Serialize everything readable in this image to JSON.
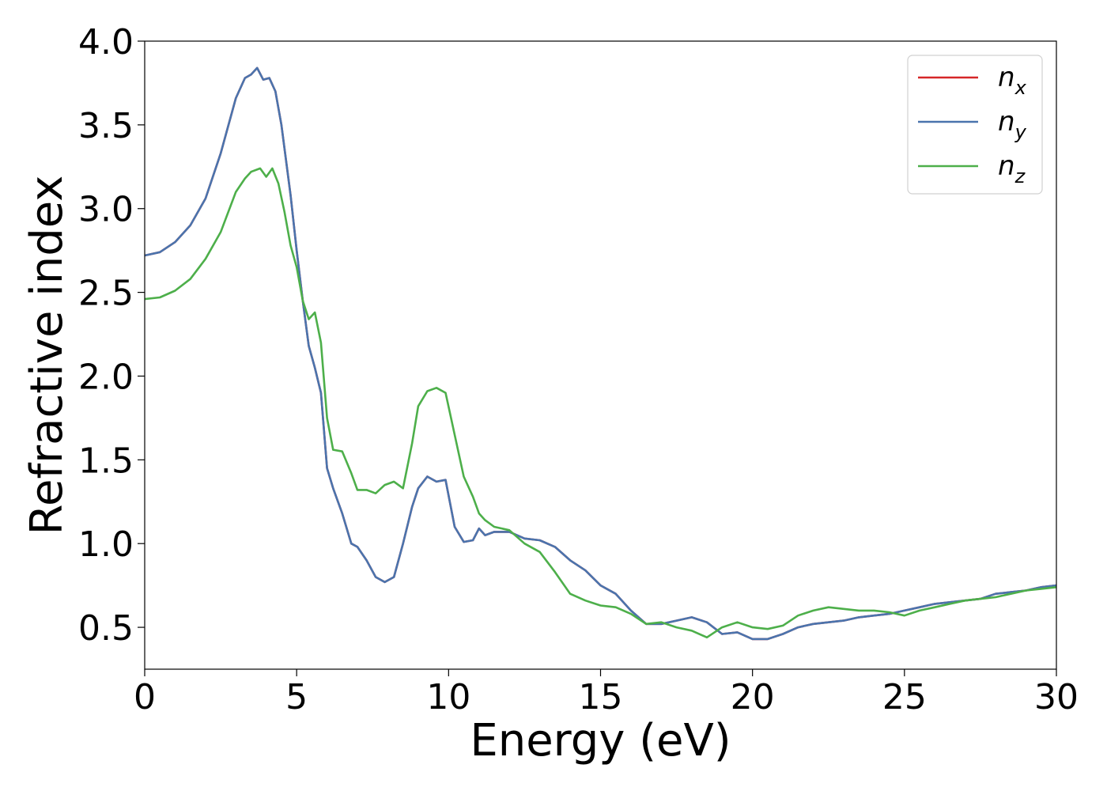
{
  "chart_data": {
    "type": "line",
    "title": "",
    "xlabel": "Energy (eV)",
    "ylabel": "Refractive index",
    "xlim": [
      0,
      30
    ],
    "ylim": [
      0.25,
      4.0
    ],
    "xticks": [
      0,
      5,
      10,
      15,
      20,
      25,
      30
    ],
    "xtick_labels": [
      "0",
      "5",
      "10",
      "15",
      "20",
      "25",
      "30"
    ],
    "yticks": [
      0.5,
      1.0,
      1.5,
      2.0,
      2.5,
      3.0,
      3.5,
      4.0
    ],
    "ytick_labels": [
      "0.5",
      "1.0",
      "1.5",
      "2.0",
      "2.5",
      "3.0",
      "3.5",
      "4.0"
    ],
    "grid": false,
    "legend_position": "top-right",
    "series": [
      {
        "name": "n_x",
        "label_base": "n",
        "label_sub": "x",
        "color": "#d62728",
        "x": [
          0,
          0.5,
          1,
          1.5,
          2,
          2.5,
          3,
          3.3,
          3.5,
          3.7,
          3.9,
          4.1,
          4.3,
          4.5,
          4.8,
          5.0,
          5.2,
          5.4,
          5.6,
          5.8,
          6.0,
          6.2,
          6.5,
          6.8,
          7.0,
          7.3,
          7.6,
          7.9,
          8.2,
          8.5,
          8.8,
          9.0,
          9.3,
          9.6,
          9.9,
          10.2,
          10.5,
          10.8,
          11.0,
          11.2,
          11.5,
          12.0,
          12.5,
          13.0,
          13.5,
          14.0,
          14.5,
          15.0,
          15.5,
          16.0,
          16.5,
          17.0,
          17.5,
          18.0,
          18.5,
          19.0,
          19.5,
          20.0,
          20.5,
          21.0,
          21.5,
          22.0,
          22.5,
          23.0,
          23.5,
          24.0,
          24.5,
          25.0,
          25.5,
          26.0,
          26.5,
          27.0,
          27.5,
          28.0,
          28.5,
          29.0,
          29.5,
          30.0
        ],
        "y": [
          2.72,
          2.74,
          2.8,
          2.9,
          3.06,
          3.33,
          3.66,
          3.78,
          3.8,
          3.84,
          3.77,
          3.78,
          3.7,
          3.5,
          3.08,
          2.75,
          2.45,
          2.18,
          2.05,
          1.9,
          1.45,
          1.33,
          1.18,
          1.0,
          0.98,
          0.9,
          0.8,
          0.77,
          0.8,
          1.0,
          1.22,
          1.33,
          1.4,
          1.37,
          1.38,
          1.1,
          1.01,
          1.02,
          1.09,
          1.05,
          1.07,
          1.07,
          1.03,
          1.02,
          0.98,
          0.9,
          0.84,
          0.75,
          0.7,
          0.6,
          0.52,
          0.52,
          0.54,
          0.56,
          0.53,
          0.46,
          0.47,
          0.43,
          0.43,
          0.46,
          0.5,
          0.52,
          0.53,
          0.54,
          0.56,
          0.57,
          0.58,
          0.6,
          0.62,
          0.64,
          0.65,
          0.66,
          0.67,
          0.7,
          0.71,
          0.72,
          0.74,
          0.75
        ]
      },
      {
        "name": "n_y",
        "label_base": "n",
        "label_sub": "y",
        "color": "#4a74ad",
        "x": [
          0,
          0.5,
          1,
          1.5,
          2,
          2.5,
          3,
          3.3,
          3.5,
          3.7,
          3.9,
          4.1,
          4.3,
          4.5,
          4.8,
          5.0,
          5.2,
          5.4,
          5.6,
          5.8,
          6.0,
          6.2,
          6.5,
          6.8,
          7.0,
          7.3,
          7.6,
          7.9,
          8.2,
          8.5,
          8.8,
          9.0,
          9.3,
          9.6,
          9.9,
          10.2,
          10.5,
          10.8,
          11.0,
          11.2,
          11.5,
          12.0,
          12.5,
          13.0,
          13.5,
          14.0,
          14.5,
          15.0,
          15.5,
          16.0,
          16.5,
          17.0,
          17.5,
          18.0,
          18.5,
          19.0,
          19.5,
          20.0,
          20.5,
          21.0,
          21.5,
          22.0,
          22.5,
          23.0,
          23.5,
          24.0,
          24.5,
          25.0,
          25.5,
          26.0,
          26.5,
          27.0,
          27.5,
          28.0,
          28.5,
          29.0,
          29.5,
          30.0
        ],
        "y": [
          2.72,
          2.74,
          2.8,
          2.9,
          3.06,
          3.33,
          3.66,
          3.78,
          3.8,
          3.84,
          3.77,
          3.78,
          3.7,
          3.5,
          3.08,
          2.75,
          2.45,
          2.18,
          2.05,
          1.9,
          1.45,
          1.33,
          1.18,
          1.0,
          0.98,
          0.9,
          0.8,
          0.77,
          0.8,
          1.0,
          1.22,
          1.33,
          1.4,
          1.37,
          1.38,
          1.1,
          1.01,
          1.02,
          1.09,
          1.05,
          1.07,
          1.07,
          1.03,
          1.02,
          0.98,
          0.9,
          0.84,
          0.75,
          0.7,
          0.6,
          0.52,
          0.52,
          0.54,
          0.56,
          0.53,
          0.46,
          0.47,
          0.43,
          0.43,
          0.46,
          0.5,
          0.52,
          0.53,
          0.54,
          0.56,
          0.57,
          0.58,
          0.6,
          0.62,
          0.64,
          0.65,
          0.66,
          0.67,
          0.7,
          0.71,
          0.72,
          0.74,
          0.75
        ]
      },
      {
        "name": "n_z",
        "label_base": "n",
        "label_sub": "z",
        "color": "#4daf4a",
        "x": [
          0,
          0.5,
          1,
          1.5,
          2,
          2.5,
          3,
          3.3,
          3.5,
          3.8,
          4.0,
          4.2,
          4.4,
          4.6,
          4.8,
          5.0,
          5.2,
          5.4,
          5.6,
          5.8,
          6.0,
          6.2,
          6.5,
          6.8,
          7.0,
          7.3,
          7.6,
          7.9,
          8.2,
          8.5,
          8.8,
          9.0,
          9.3,
          9.6,
          9.9,
          10.2,
          10.5,
          10.8,
          11.0,
          11.2,
          11.5,
          12.0,
          12.5,
          13.0,
          13.5,
          14.0,
          14.5,
          15.0,
          15.5,
          16.0,
          16.5,
          17.0,
          17.5,
          18.0,
          18.5,
          19.0,
          19.5,
          20.0,
          20.5,
          21.0,
          21.5,
          22.0,
          22.5,
          23.0,
          23.5,
          24.0,
          24.5,
          25.0,
          25.5,
          26.0,
          26.5,
          27.0,
          27.5,
          28.0,
          28.5,
          29.0,
          29.5,
          30.0
        ],
        "y": [
          2.46,
          2.47,
          2.51,
          2.58,
          2.7,
          2.86,
          3.1,
          3.18,
          3.22,
          3.24,
          3.19,
          3.24,
          3.15,
          2.98,
          2.78,
          2.65,
          2.45,
          2.34,
          2.38,
          2.2,
          1.75,
          1.56,
          1.55,
          1.42,
          1.32,
          1.32,
          1.3,
          1.35,
          1.37,
          1.33,
          1.6,
          1.82,
          1.91,
          1.93,
          1.9,
          1.65,
          1.4,
          1.28,
          1.18,
          1.14,
          1.1,
          1.08,
          1.0,
          0.95,
          0.83,
          0.7,
          0.66,
          0.63,
          0.62,
          0.58,
          0.52,
          0.53,
          0.5,
          0.48,
          0.44,
          0.5,
          0.53,
          0.5,
          0.49,
          0.51,
          0.57,
          0.6,
          0.62,
          0.61,
          0.6,
          0.6,
          0.59,
          0.57,
          0.6,
          0.62,
          0.64,
          0.66,
          0.67,
          0.68,
          0.7,
          0.72,
          0.73,
          0.74
        ]
      }
    ]
  }
}
